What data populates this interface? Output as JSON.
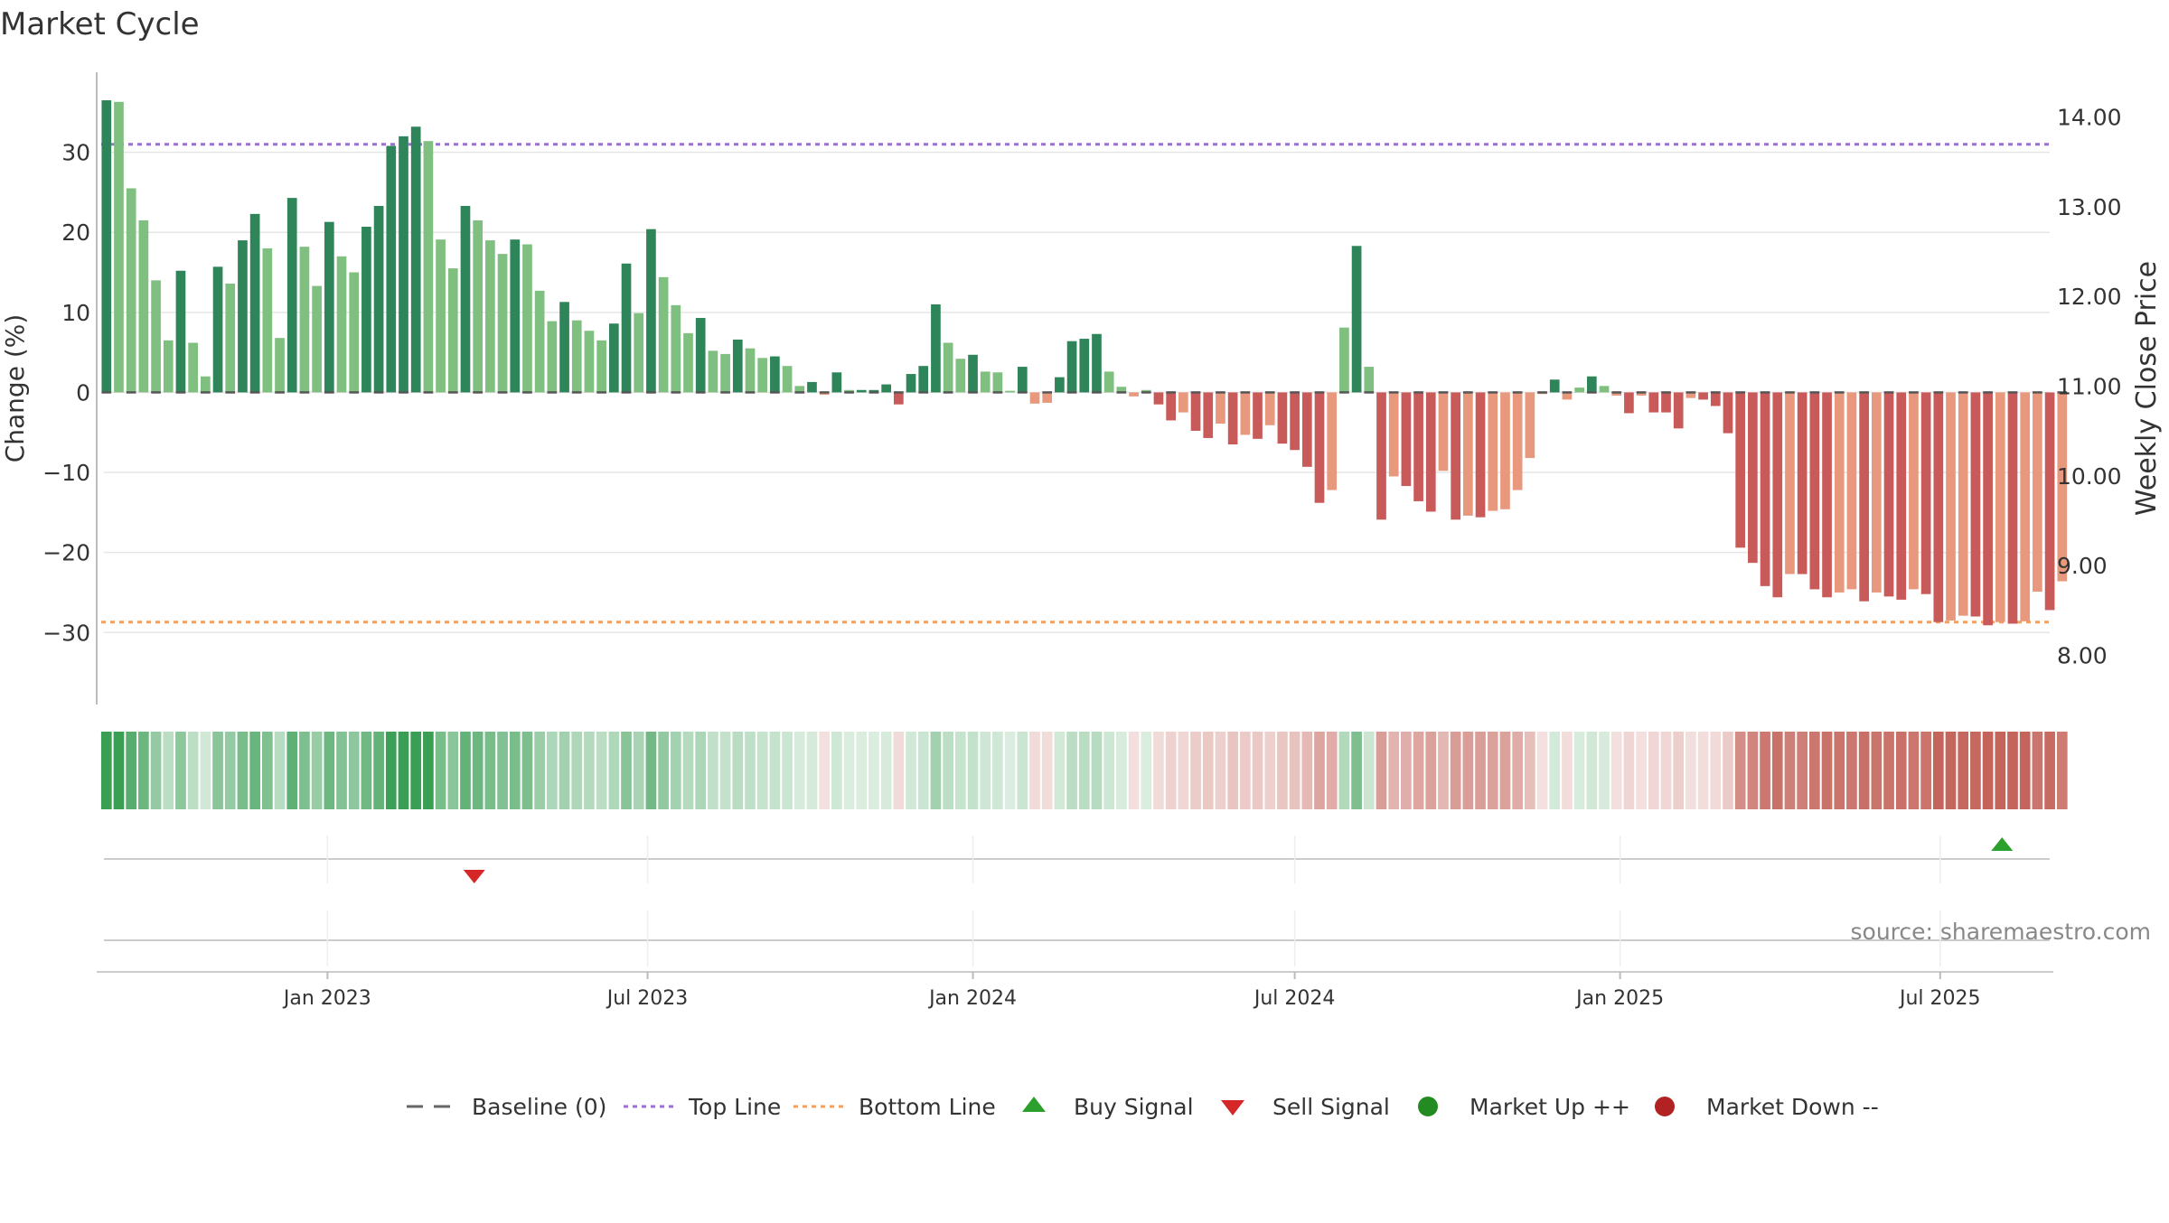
{
  "chart_data": {
    "type": "bar",
    "title": "Market Cycle",
    "ylabel": "Change (%)",
    "y2label": "Weekly Close Price",
    "ylim": [
      -39,
      40
    ],
    "y2lim": [
      7.45,
      14.5
    ],
    "yticks": [
      30,
      20,
      10,
      0,
      -10,
      -20,
      -30
    ],
    "y2ticks": [
      "14.00",
      "13.00",
      "12.00",
      "11.00",
      "10.00",
      "9.00",
      "8.00"
    ],
    "xticks": [
      "Jan 2023",
      "Jul 2023",
      "Jan 2024",
      "Jul 2024",
      "Jan 2025",
      "Jul 2025"
    ],
    "x_range": [
      "2022-08-24",
      "2025-09-03"
    ],
    "xtick_dates": [
      "2023-01-01",
      "2023-07-01",
      "2024-01-01",
      "2024-07-01",
      "2025-01-01",
      "2025-07-01"
    ],
    "top_line": 31,
    "bottom_line": -28.7,
    "source": "source: sharemaestro.com",
    "colors": {
      "up_strong": "#2e8559",
      "up_light": "#7fbf7f",
      "down_strong": "#c85a5a",
      "down_light": "#e8987c",
      "top_line": "#9a6fd0",
      "bottom_line": "#f0a060",
      "buy": "#2ca02c",
      "sell": "#d62728",
      "market_up": "#228b22",
      "market_down": "#b22222",
      "baseline": "#555555"
    },
    "series": [
      {
        "start": "2022-08-29",
        "interval_days": 7,
        "values": [
          36.5,
          36.3,
          25.5,
          21.5,
          14,
          6.5,
          15.2,
          6.2,
          2,
          15.7,
          13.6,
          19,
          22.3,
          18,
          6.8,
          24.3,
          18.2,
          13.3,
          21.3,
          17,
          15,
          20.7,
          23.3,
          30.8,
          32,
          33.2,
          31.4,
          19.1,
          15.5,
          23.3,
          21.5,
          19,
          17.3,
          19.1,
          18.5,
          12.7,
          8.9,
          11.3,
          9,
          7.7,
          6.5,
          8.6,
          16.1,
          9.9,
          20.4,
          14.4,
          10.9,
          7.4,
          9.3,
          5.2,
          4.8,
          6.6,
          5.5,
          4.3,
          4.5,
          3.3,
          0.8,
          1.3,
          -0.3,
          2.5,
          0.3,
          0.3,
          0.3,
          1,
          -1.5,
          2.3,
          3.3,
          11,
          6.2,
          4.2,
          4.7,
          2.6,
          2.5,
          0.2,
          3.2,
          -1.4,
          -1.3,
          1.9,
          6.4,
          6.7,
          7.3,
          2.6,
          0.7,
          -0.5,
          0.3,
          -1.5,
          -3.5,
          -2.5,
          -4.8,
          -5.7,
          -3.9,
          -6.5,
          -5.3,
          -5.8,
          -4.1,
          -6.4,
          -7.2,
          -9.3,
          -13.8,
          -12.2,
          8.1,
          18.3,
          3.2,
          -15.9,
          -10.5,
          -11.7,
          -13.6,
          -14.9,
          -9.8,
          -15.9,
          -15.4,
          -15.6,
          -14.8,
          -14.6,
          -12.2,
          -8.2,
          -0.2,
          1.6,
          -0.9,
          0.6,
          2,
          0.8,
          -0.4,
          -2.6,
          -0.4,
          -2.5,
          -2.5,
          -4.5,
          -0.7,
          -0.9,
          -1.7,
          -5.1,
          -19.4,
          -21.3,
          -24.2,
          -25.6,
          -22.7,
          -22.7,
          -24.6,
          -25.6,
          -25,
          -24.6,
          -26.1,
          -25,
          -25.5,
          -25.9,
          -24.6,
          -25.2,
          -28.7,
          -28.5,
          -27.9,
          -28,
          -29.1,
          -28.7,
          -28.9,
          -28.6,
          -24.9,
          -27.2,
          -23.6
        ]
      }
    ],
    "legend": [
      {
        "name": "Baseline (0)",
        "marker": "dash"
      },
      {
        "name": "Top Line",
        "marker": "dot-purple"
      },
      {
        "name": "Bottom Line",
        "marker": "dot-orange"
      },
      {
        "name": "Buy Signal",
        "marker": "triangle-up"
      },
      {
        "name": "Sell Signal",
        "marker": "triangle-down"
      },
      {
        "name": "Market Up ++",
        "marker": "circle-green"
      },
      {
        "name": "Market Down --",
        "marker": "circle-red"
      }
    ],
    "signals": [
      {
        "type": "sell",
        "date": "2023-03-25"
      },
      {
        "type": "buy",
        "date": "2025-08-05"
      }
    ]
  }
}
